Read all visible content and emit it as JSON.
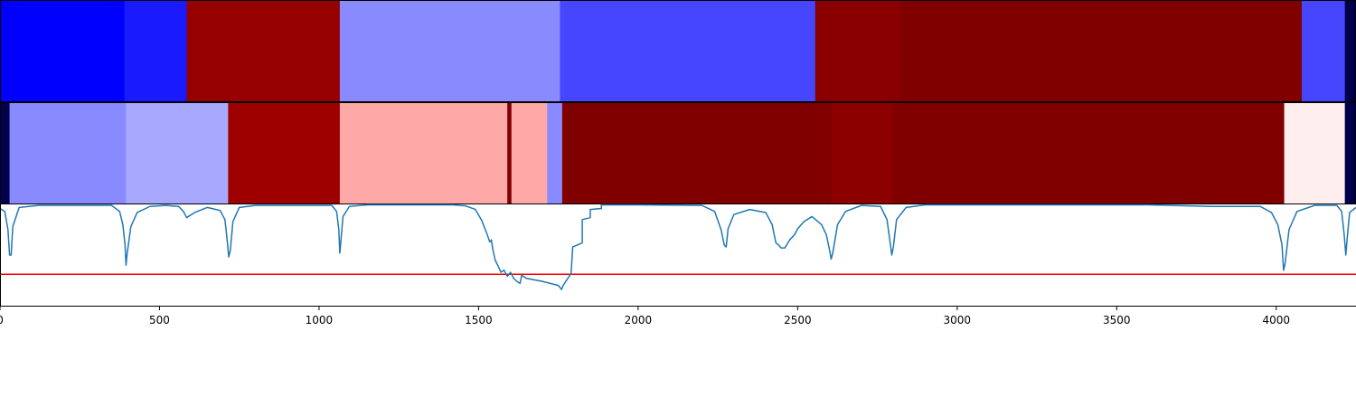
{
  "chart_data": [
    {
      "type": "heatmap",
      "panel": "top-strip",
      "xlim": [
        0,
        4250
      ],
      "colormap": "bwr",
      "segments": [
        {
          "start": 0,
          "end": 390,
          "color": "#0000ff"
        },
        {
          "start": 390,
          "end": 585,
          "color": "#1a1aff"
        },
        {
          "start": 585,
          "end": 1065,
          "color": "#960000"
        },
        {
          "start": 1065,
          "end": 1755,
          "color": "#8a8aff"
        },
        {
          "start": 1755,
          "end": 2555,
          "color": "#4646ff"
        },
        {
          "start": 2555,
          "end": 2820,
          "color": "#8a0000"
        },
        {
          "start": 2820,
          "end": 4080,
          "color": "#800000"
        },
        {
          "start": 4080,
          "end": 4215,
          "color": "#4646ff"
        },
        {
          "start": 4215,
          "end": 4250,
          "color": "#00004c"
        }
      ]
    },
    {
      "type": "heatmap",
      "panel": "middle-strip",
      "xlim": [
        0,
        4250
      ],
      "colormap": "bwr",
      "segments": [
        {
          "start": 0,
          "end": 30,
          "color": "#00004c"
        },
        {
          "start": 30,
          "end": 395,
          "color": "#8a8aff"
        },
        {
          "start": 395,
          "end": 715,
          "color": "#a8a8ff"
        },
        {
          "start": 715,
          "end": 1065,
          "color": "#9e0000"
        },
        {
          "start": 1065,
          "end": 1590,
          "color": "#ffa8a8"
        },
        {
          "start": 1590,
          "end": 1603,
          "color": "#800000"
        },
        {
          "start": 1603,
          "end": 1715,
          "color": "#ffa8a8"
        },
        {
          "start": 1715,
          "end": 1762,
          "color": "#8a8aff"
        },
        {
          "start": 1762,
          "end": 2605,
          "color": "#800000"
        },
        {
          "start": 2605,
          "end": 2795,
          "color": "#8c0000"
        },
        {
          "start": 2795,
          "end": 4025,
          "color": "#800000"
        },
        {
          "start": 4025,
          "end": 4215,
          "color": "#ffeeee"
        },
        {
          "start": 4215,
          "end": 4250,
          "color": "#00004c"
        }
      ]
    },
    {
      "type": "line",
      "panel": "bottom-plot",
      "xlim": [
        0,
        4250
      ],
      "ylim": [
        0,
        1
      ],
      "ticks": [
        0,
        500,
        1000,
        1500,
        2000,
        2500,
        3000,
        3500,
        4000
      ],
      "tick_labels": [
        "0",
        "500",
        "1000",
        "1500",
        "2000",
        "2500",
        "3000",
        "3500",
        "4000"
      ],
      "threshold": {
        "y": 0.31,
        "color": "#ff0000"
      },
      "series": [
        {
          "color": "#1f77b4",
          "points": [
            [
              0,
              0.96
            ],
            [
              15,
              0.93
            ],
            [
              25,
              0.75
            ],
            [
              30,
              0.5
            ],
            [
              35,
              0.5
            ],
            [
              40,
              0.78
            ],
            [
              60,
              0.97
            ],
            [
              120,
              0.99
            ],
            [
              350,
              0.99
            ],
            [
              375,
              0.93
            ],
            [
              385,
              0.8
            ],
            [
              392,
              0.6
            ],
            [
              395,
              0.4
            ],
            [
              398,
              0.5
            ],
            [
              410,
              0.78
            ],
            [
              430,
              0.92
            ],
            [
              470,
              0.98
            ],
            [
              520,
              0.99
            ],
            [
              560,
              0.98
            ],
            [
              575,
              0.93
            ],
            [
              585,
              0.87
            ],
            [
              590,
              0.88
            ],
            [
              600,
              0.9
            ],
            [
              610,
              0.92
            ],
            [
              650,
              0.97
            ],
            [
              690,
              0.94
            ],
            [
              705,
              0.85
            ],
            [
              712,
              0.65
            ],
            [
              717,
              0.48
            ],
            [
              722,
              0.55
            ],
            [
              730,
              0.83
            ],
            [
              750,
              0.97
            ],
            [
              800,
              0.99
            ],
            [
              1040,
              0.99
            ],
            [
              1055,
              0.93
            ],
            [
              1062,
              0.75
            ],
            [
              1065,
              0.52
            ],
            [
              1068,
              0.62
            ],
            [
              1075,
              0.88
            ],
            [
              1095,
              0.98
            ],
            [
              1150,
              0.995
            ],
            [
              1420,
              0.995
            ],
            [
              1460,
              0.985
            ],
            [
              1490,
              0.95
            ],
            [
              1510,
              0.84
            ],
            [
              1525,
              0.72
            ],
            [
              1535,
              0.63
            ],
            [
              1540,
              0.65
            ],
            [
              1545,
              0.55
            ],
            [
              1552,
              0.45
            ],
            [
              1560,
              0.4
            ],
            [
              1570,
              0.33
            ],
            [
              1580,
              0.35
            ],
            [
              1590,
              0.29
            ],
            [
              1600,
              0.33
            ],
            [
              1610,
              0.27
            ],
            [
              1620,
              0.24
            ],
            [
              1630,
              0.22
            ],
            [
              1635,
              0.3
            ],
            [
              1650,
              0.27
            ],
            [
              1700,
              0.24
            ],
            [
              1750,
              0.2
            ],
            [
              1760,
              0.16
            ],
            [
              1765,
              0.2
            ],
            [
              1790,
              0.32
            ],
            [
              1795,
              0.58
            ],
            [
              1825,
              0.62
            ],
            [
              1825,
              0.85
            ],
            [
              1850,
              0.87
            ],
            [
              1850,
              0.95
            ],
            [
              1885,
              0.96
            ],
            [
              1885,
              0.995
            ],
            [
              2000,
              0.995
            ],
            [
              2200,
              0.99
            ],
            [
              2240,
              0.93
            ],
            [
              2260,
              0.75
            ],
            [
              2270,
              0.6
            ],
            [
              2276,
              0.58
            ],
            [
              2282,
              0.76
            ],
            [
              2300,
              0.9
            ],
            [
              2350,
              0.95
            ],
            [
              2400,
              0.92
            ],
            [
              2420,
              0.8
            ],
            [
              2432,
              0.62
            ],
            [
              2440,
              0.6
            ],
            [
              2448,
              0.57
            ],
            [
              2460,
              0.57
            ],
            [
              2475,
              0.65
            ],
            [
              2490,
              0.7
            ],
            [
              2500,
              0.76
            ],
            [
              2520,
              0.83
            ],
            [
              2545,
              0.88
            ],
            [
              2575,
              0.8
            ],
            [
              2590,
              0.7
            ],
            [
              2600,
              0.55
            ],
            [
              2605,
              0.46
            ],
            [
              2610,
              0.52
            ],
            [
              2625,
              0.8
            ],
            [
              2650,
              0.93
            ],
            [
              2700,
              0.99
            ],
            [
              2760,
              0.98
            ],
            [
              2780,
              0.85
            ],
            [
              2790,
              0.62
            ],
            [
              2795,
              0.5
            ],
            [
              2800,
              0.58
            ],
            [
              2810,
              0.85
            ],
            [
              2840,
              0.97
            ],
            [
              2900,
              0.995
            ],
            [
              3600,
              0.995
            ],
            [
              3800,
              0.98
            ],
            [
              3950,
              0.98
            ],
            [
              3985,
              0.92
            ],
            [
              4005,
              0.8
            ],
            [
              4018,
              0.6
            ],
            [
              4023,
              0.35
            ],
            [
              4028,
              0.42
            ],
            [
              4040,
              0.75
            ],
            [
              4065,
              0.93
            ],
            [
              4120,
              0.99
            ],
            [
              4190,
              0.99
            ],
            [
              4205,
              0.93
            ],
            [
              4213,
              0.7
            ],
            [
              4218,
              0.5
            ],
            [
              4222,
              0.65
            ],
            [
              4230,
              0.92
            ],
            [
              4250,
              0.97
            ]
          ]
        }
      ]
    }
  ]
}
